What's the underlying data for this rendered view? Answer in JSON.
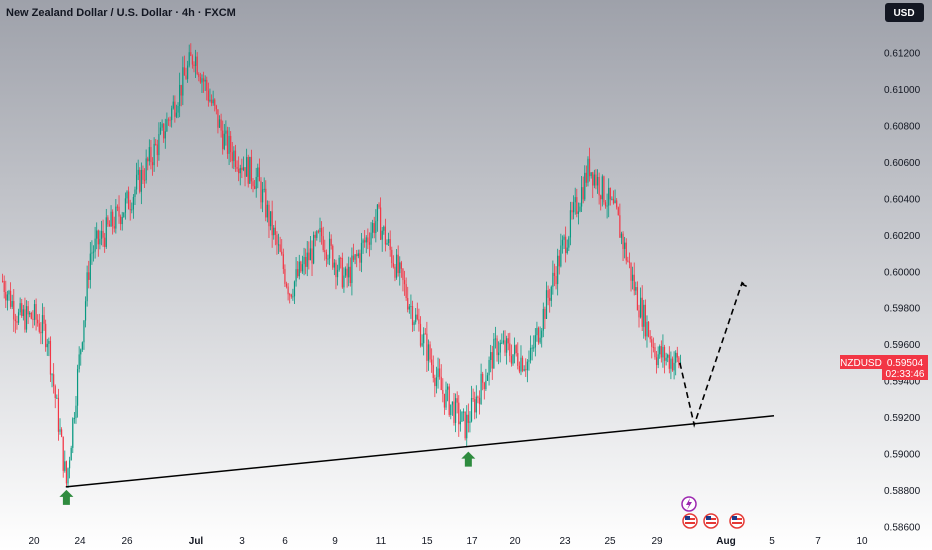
{
  "header": {
    "title": "New Zealand Dollar / U.S. Dollar · 4h · FXCM",
    "currency_button": "USD"
  },
  "price_tag": {
    "symbol": "NZDUSD",
    "price": "0.59504",
    "countdown": "02:33:46"
  },
  "colors": {
    "up": "#089981",
    "down": "#f23645",
    "arrow": "#2e8b3e",
    "line": "#000000",
    "tag_bg": "#f23645"
  },
  "chart_data": {
    "type": "candlestick",
    "y_axis_labels": [
      "0.61200",
      "0.61000",
      "0.60800",
      "0.60600",
      "0.60400",
      "0.60200",
      "0.60000",
      "0.59800",
      "0.59600",
      "0.59400",
      "0.59200",
      "0.59000",
      "0.58800",
      "0.58600"
    ],
    "y_axis_values": [
      0.612,
      0.61,
      0.608,
      0.606,
      0.604,
      0.602,
      0.6,
      0.598,
      0.596,
      0.594,
      0.592,
      0.59,
      0.588,
      0.586
    ],
    "x_axis_labels": [
      "20",
      "24",
      "26",
      "Jul",
      "3",
      "6",
      "9",
      "11",
      "15",
      "17",
      "20",
      "23",
      "25",
      "29",
      "Aug",
      "5",
      "7",
      "10"
    ],
    "ylim": [
      0.5856,
      0.6128
    ],
    "swing_points": [
      {
        "i": 0,
        "v": 0.5995
      },
      {
        "i": 10,
        "v": 0.5975
      },
      {
        "i": 20,
        "v": 0.5975
      },
      {
        "i": 28,
        "v": 0.5965
      },
      {
        "i": 40,
        "v": 0.5884
      },
      {
        "i": 55,
        "v": 0.601
      },
      {
        "i": 80,
        "v": 0.604
      },
      {
        "i": 100,
        "v": 0.6075
      },
      {
        "i": 120,
        "v": 0.612
      },
      {
        "i": 140,
        "v": 0.607
      },
      {
        "i": 160,
        "v": 0.605
      },
      {
        "i": 180,
        "v": 0.599
      },
      {
        "i": 200,
        "v": 0.602
      },
      {
        "i": 215,
        "v": 0.5995
      },
      {
        "i": 235,
        "v": 0.603
      },
      {
        "i": 265,
        "v": 0.596
      },
      {
        "i": 275,
        "v": 0.5935
      },
      {
        "i": 290,
        "v": 0.5915
      },
      {
        "i": 310,
        "v": 0.596
      },
      {
        "i": 330,
        "v": 0.595
      },
      {
        "i": 350,
        "v": 0.601
      },
      {
        "i": 368,
        "v": 0.6058
      },
      {
        "i": 385,
        "v": 0.603
      },
      {
        "i": 398,
        "v": 0.5985
      },
      {
        "i": 410,
        "v": 0.5955
      },
      {
        "i": 425,
        "v": 0.595
      }
    ],
    "candle_count": 426,
    "support_line": {
      "from": [
        40,
        0.5882
      ],
      "to": [
        484,
        0.5921
      ]
    },
    "projection": [
      [
        425,
        0.595
      ],
      [
        434,
        0.5916
      ],
      [
        464,
        0.5994
      ],
      [
        467,
        0.5992
      ],
      [
        462,
        0.5994
      ]
    ],
    "arrows": [
      {
        "i": 40,
        "v": 0.5882
      },
      {
        "i": 292,
        "v": 0.5903
      }
    ]
  }
}
